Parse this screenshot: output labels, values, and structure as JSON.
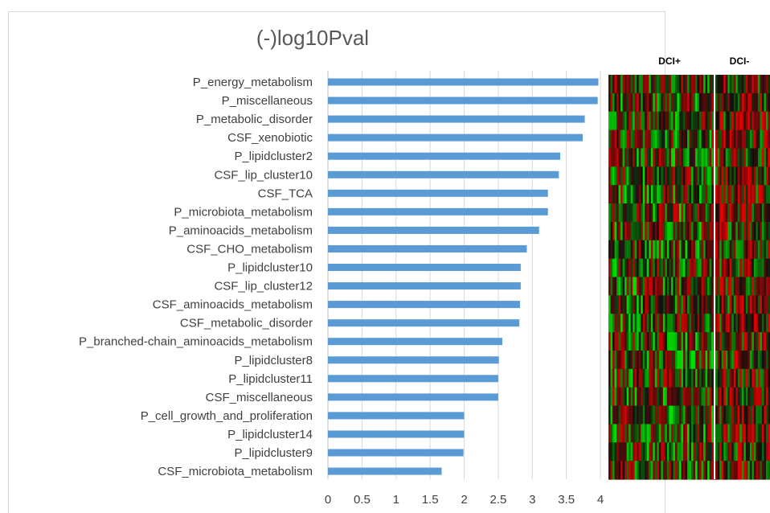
{
  "chart_data": [
    {
      "type": "bar",
      "orientation": "horizontal",
      "title": "(-)log10Pval",
      "categories": [
        "P_energy_metabolism",
        "P_miscellaneous",
        "P_metabolic_disorder",
        "CSF_xenobiotic",
        "P_lipidcluster2",
        "CSF_lip_cluster10",
        "CSF_TCA",
        "P_microbiota_metabolism",
        "P_aminoacids_metabolism",
        "CSF_CHO_metabolism",
        "P_lipidcluster10",
        "CSF_lip_cluster12",
        "CSF_aminoacids_metabolism",
        "CSF_metabolic_disorder",
        "P_branched-chain_aminoacids_metabolism",
        "P_lipidcluster8",
        "P_lipidcluster11",
        "CSF_miscellaneous",
        "P_cell_growth_and_proliferation",
        "P_lipidcluster14",
        "P_lipidcluster9",
        "CSF_microbiota_metabolism"
      ],
      "values": [
        3.97,
        3.96,
        3.77,
        3.74,
        3.41,
        3.39,
        3.23,
        3.23,
        3.1,
        2.92,
        2.83,
        2.83,
        2.82,
        2.81,
        2.56,
        2.51,
        2.5,
        2.5,
        2.0,
        2.0,
        1.99,
        1.67
      ],
      "xlim": [
        0,
        4
      ],
      "xticks": [
        "0",
        "0.5",
        "1",
        "1.5",
        "2",
        "2.5",
        "3",
        "3.5",
        "4"
      ],
      "grid": true,
      "bar_color": "#5b9bd5"
    },
    {
      "type": "heatmap",
      "column_groups": [
        "DCI+",
        "DCI-"
      ],
      "colors": {
        "low": "#00e000",
        "mid": "#101010",
        "high": "#e00000"
      }
    }
  ]
}
